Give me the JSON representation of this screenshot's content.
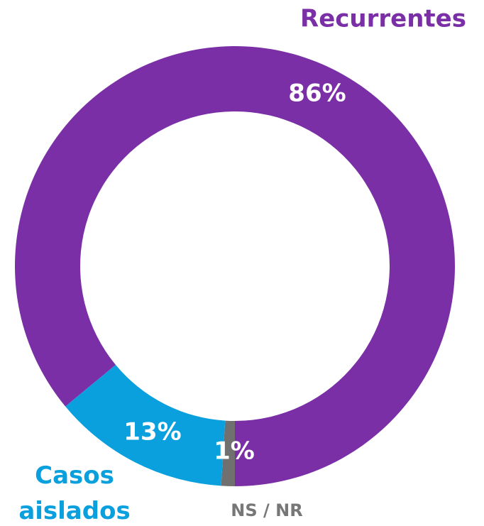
{
  "chart_data": {
    "type": "donut",
    "categories": [
      "Recurrentes",
      "Casos aislados",
      "NS / NR"
    ],
    "values": [
      86,
      13,
      1
    ],
    "value_labels": [
      "86%",
      "13%",
      "1%"
    ],
    "colors": [
      "#7b2fa6",
      "#0aa0de",
      "#707070"
    ]
  }
}
